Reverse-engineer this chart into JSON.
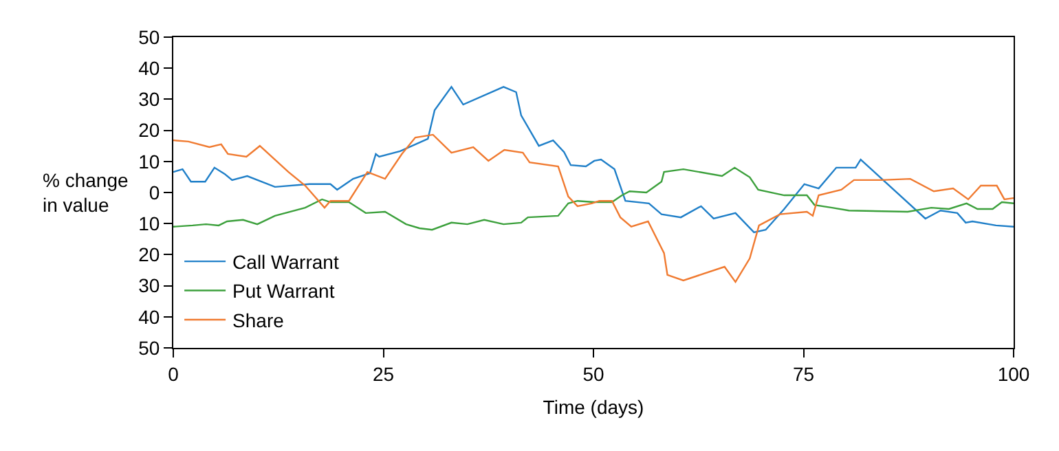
{
  "chart_data": {
    "type": "line",
    "xlabel": "Time (days)",
    "ylabel": "% change\nin value",
    "xlim": [
      0,
      100
    ],
    "xticks": [
      0,
      25,
      50,
      75,
      100
    ],
    "ylim": [
      -50,
      50
    ],
    "yticks": [
      {
        "value": -50,
        "label": "50"
      },
      {
        "value": -40,
        "label": "40"
      },
      {
        "value": -30,
        "label": "30"
      },
      {
        "value": -20,
        "label": "20"
      },
      {
        "value": -10,
        "label": "10"
      },
      0,
      10,
      20,
      30,
      40,
      50
    ],
    "legend": "bottom left",
    "marker": "none",
    "line_style": "solid",
    "series": [
      {
        "name": "Call Warrant",
        "color": "#1f7fc8",
        "x": [
          0,
          1.1,
          2.1,
          3.8,
          4.9,
          6.1,
          7,
          8.8,
          12.1,
          16.2,
          18.7,
          19.5,
          21.4,
          23.4,
          24.1,
          24.5,
          27,
          30.3,
          31.1,
          33.1,
          34.5,
          39.3,
          40.8,
          41.4,
          43.5,
          45.2,
          46.5,
          47.3,
          49.1,
          50.1,
          50.9,
          52.5,
          53.8,
          56.6,
          58.1,
          60.4,
          62.8,
          64.3,
          66.9,
          69.1,
          70.5,
          72.7,
          75.1,
          76.8,
          78.9,
          81.2,
          81.8,
          89.5,
          91.3,
          93.3,
          94.3,
          95.1,
          97.9,
          100
        ],
        "values": [
          6.6,
          7.5,
          3.5,
          3.5,
          8,
          6,
          4,
          5.3,
          1.8,
          2.7,
          2.7,
          0.9,
          4.4,
          6.2,
          12.4,
          11.5,
          13.3,
          17.3,
          26.5,
          34,
          28.3,
          34,
          32.3,
          24.8,
          15,
          16.8,
          13,
          8.8,
          8.4,
          10.2,
          10.6,
          7.5,
          -2.7,
          -3.5,
          -7,
          -8,
          -4.4,
          -8.4,
          -6.6,
          -12.8,
          -12,
          -5.3,
          2.7,
          1.3,
          8,
          8,
          10.6,
          -8.4,
          -5.8,
          -6.6,
          -9.7,
          -9.3,
          -10.6,
          -11
        ]
      },
      {
        "name": "Put Warrant",
        "color": "#3ca03c",
        "x": [
          0,
          2.3,
          3.9,
          5.4,
          6.4,
          8.3,
          10,
          12.1,
          15.7,
          17.7,
          18.7,
          20.9,
          22.9,
          25.2,
          27.7,
          29.3,
          30.8,
          33.1,
          35,
          37,
          39.3,
          41.4,
          42.2,
          45.8,
          47,
          48.1,
          50.1,
          52.2,
          53.4,
          54.3,
          56.3,
          58.1,
          58.4,
          60.7,
          65.3,
          66.8,
          68.6,
          69.6,
          72.7,
          75.4,
          76.3,
          78.4,
          80.4,
          87.4,
          90.2,
          92.3,
          94.4,
          95.7,
          97.5,
          98.6,
          100
        ],
        "values": [
          -11,
          -10.6,
          -10.2,
          -10.6,
          -9.3,
          -8.8,
          -10.2,
          -7.5,
          -4.9,
          -2.2,
          -3.1,
          -3.1,
          -6.6,
          -6.2,
          -10.2,
          -11.5,
          -12,
          -9.7,
          -10.2,
          -8.8,
          -10.2,
          -9.7,
          -8,
          -7.5,
          -3.5,
          -2.7,
          -3.1,
          -3.1,
          -0.9,
          0.4,
          0,
          3.5,
          6.6,
          7.5,
          5.3,
          8,
          4.9,
          0.9,
          -0.9,
          -0.9,
          -4,
          -4.9,
          -5.8,
          -6.2,
          -4.9,
          -5.3,
          -3.5,
          -5.3,
          -5.3,
          -3.1,
          -3.5
        ]
      },
      {
        "name": "Share",
        "color": "#f07a30",
        "x": [
          0,
          1.8,
          4.3,
          5.7,
          6.5,
          8.7,
          10.3,
          13.7,
          15.7,
          18,
          18.7,
          20.9,
          23.1,
          25.2,
          27.2,
          28.8,
          30.9,
          33.1,
          35.7,
          37.5,
          39.4,
          41.6,
          42.4,
          45.8,
          47,
          48.1,
          49.8,
          50.7,
          52.2,
          53.2,
          54.5,
          56.5,
          58.4,
          58.8,
          60.7,
          65.6,
          66.9,
          68.6,
          69.7,
          72.2,
          75.4,
          76.1,
          76.8,
          79.5,
          81,
          84.3,
          87.7,
          90.5,
          92.8,
          94.6,
          96.1,
          98,
          98.9,
          100
        ],
        "values": [
          16.8,
          16.4,
          14.6,
          15.5,
          12.4,
          11.5,
          15,
          6.6,
          2.2,
          -4.9,
          -2.7,
          -2.7,
          6.6,
          4.4,
          12.4,
          17.7,
          18.6,
          12.8,
          14.6,
          10.2,
          13.7,
          12.8,
          9.7,
          8.4,
          -1.3,
          -4.4,
          -3.5,
          -2.7,
          -2.7,
          -8,
          -11,
          -9.3,
          -19.5,
          -26.5,
          -28.3,
          -23.9,
          -28.8,
          -21.2,
          -10.6,
          -7,
          -6.2,
          -7.5,
          -0.9,
          0.9,
          4,
          4,
          4.4,
          0.4,
          1.3,
          -2.2,
          2.2,
          2.2,
          -2.2,
          -1.8
        ]
      }
    ]
  }
}
